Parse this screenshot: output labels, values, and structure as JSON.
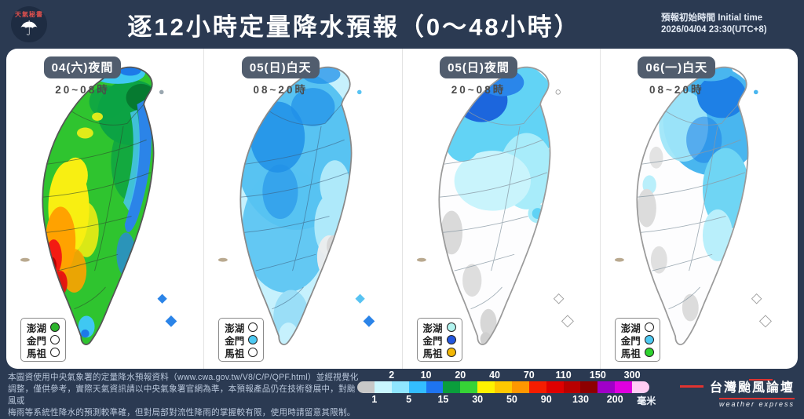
{
  "header": {
    "brand": "天氣秘書",
    "title": "逐12小時定量降水預報（0～48小時）",
    "init_label": "預報初始時間 Initial time",
    "init_value": "2026/04/04  23:30(UTC+8)"
  },
  "panels": [
    {
      "badge": "04(六)夜間",
      "time": "20~08時",
      "legend": [
        {
          "label": "澎湖",
          "color": "#2db52d"
        },
        {
          "label": "金門",
          "color": "#ffffff"
        },
        {
          "label": "馬祖",
          "color": "#ffffff"
        }
      ]
    },
    {
      "badge": "05(日)白天",
      "time": "08~20時",
      "legend": [
        {
          "label": "澎湖",
          "color": "#ffffff"
        },
        {
          "label": "金門",
          "color": "#4ec9f2"
        },
        {
          "label": "馬祖",
          "color": "#ffffff"
        }
      ]
    },
    {
      "badge": "05(日)夜間",
      "time": "20~08時",
      "legend": [
        {
          "label": "澎湖",
          "color": "#b2f4ef"
        },
        {
          "label": "金門",
          "color": "#2256de"
        },
        {
          "label": "馬祖",
          "color": "#f2b705"
        }
      ]
    },
    {
      "badge": "06(一)白天",
      "time": "08~20時",
      "legend": [
        {
          "label": "澎湖",
          "color": "#ffffff"
        },
        {
          "label": "金門",
          "color": "#4ec9f2"
        },
        {
          "label": "馬祖",
          "color": "#2ed32e"
        }
      ]
    }
  ],
  "footer": {
    "disclaimer_lines": [
      "本圖資使用中央氣象署的定量降水預報資料（www.cwa.gov.tw/V8/C/P/QPF.html）並經視覺化",
      "調整，僅供參考，實際天氣資訊請以中央氣象署官網為準，本預報產品仍在技術發展中，對颱風或",
      "梅雨等系統性降水的預測較準確，但對局部對流性降雨的掌握較有限，使用時請留意其限制。"
    ],
    "scale": {
      "boundaries": [
        "1",
        "2",
        "5",
        "10",
        "15",
        "20",
        "30",
        "40",
        "50",
        "70",
        "90",
        "110",
        "130",
        "150",
        "200",
        "300"
      ],
      "colors": [
        "#c8c8c8",
        "#c9f6ff",
        "#8fe6ff",
        "#33bdff",
        "#1e74f0",
        "#0a9e3c",
        "#36d336",
        "#fff200",
        "#ffc800",
        "#ff9700",
        "#f51d00",
        "#de0000",
        "#b80000",
        "#8e0000",
        "#a000c8",
        "#e000e0",
        "#ffcdf4"
      ],
      "unit": "毫米"
    },
    "brand_name": "台灣颱風論壇",
    "brand_tagline": "weather express"
  }
}
